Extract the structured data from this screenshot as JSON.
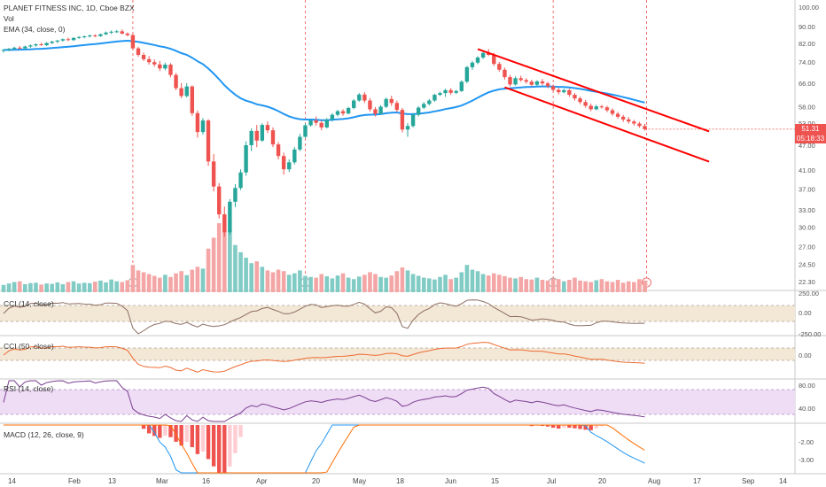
{
  "chart_data": {
    "type": "candlestick",
    "symbol_line": "PLANET FITNESS INC, 1D, Cboe BZX",
    "volume_label": "Vol",
    "ema_label": "EMA (34, close, 0)",
    "x_ticks": [
      "14",
      "Feb",
      "13",
      "Mar",
      "16",
      "Apr",
      "20",
      "May",
      "18",
      "Jun",
      "15",
      "Jul",
      "20",
      "Aug",
      "17",
      "Sep",
      "14"
    ],
    "price_axis_ticks": [
      "100.00",
      "90.00",
      "82.00",
      "74.00",
      "66.00",
      "58.00",
      "53.00",
      "47.00",
      "41.00",
      "37.00",
      "33.00",
      "30.00",
      "27.00",
      "24.50",
      "22.30"
    ],
    "last_price": "51.31",
    "countdown": "05:18:33",
    "price_tag_color": "#ef5350",
    "earnings_marker": "E",
    "candles": [
      [
        78.8,
        79.5,
        78.0,
        79.1
      ],
      [
        79.1,
        80.0,
        78.6,
        79.6
      ],
      [
        79.6,
        80.5,
        79.0,
        80.1
      ],
      [
        80.1,
        80.8,
        79.5,
        79.8
      ],
      [
        79.8,
        81.0,
        79.3,
        80.6
      ],
      [
        80.6,
        81.5,
        80.0,
        81.1
      ],
      [
        81.1,
        82.0,
        80.5,
        81.6
      ],
      [
        81.6,
        82.3,
        81.0,
        81.2
      ],
      [
        81.2,
        82.5,
        80.8,
        82.2
      ],
      [
        82.2,
        83.2,
        81.7,
        82.8
      ],
      [
        82.8,
        83.5,
        82.1,
        83.3
      ],
      [
        83.3,
        84.2,
        82.8,
        83.9
      ],
      [
        83.9,
        84.6,
        83.0,
        83.5
      ],
      [
        83.5,
        84.8,
        83.1,
        84.5
      ],
      [
        84.5,
        85.3,
        84.0,
        84.9
      ],
      [
        84.9,
        85.6,
        84.3,
        85.2
      ],
      [
        85.2,
        86.1,
        84.6,
        85.6
      ],
      [
        85.6,
        86.2,
        84.9,
        85.3
      ],
      [
        85.3,
        86.5,
        85.0,
        86.2
      ],
      [
        86.2,
        87.5,
        85.8,
        87.0
      ],
      [
        87.0,
        88.0,
        86.3,
        87.4
      ],
      [
        87.4,
        88.2,
        86.8,
        87.6
      ],
      [
        87.6,
        88.5,
        86.1,
        86.5
      ],
      [
        86.5,
        87.1,
        85.2,
        85.8
      ],
      [
        85.8,
        86.3,
        79.0,
        79.8
      ],
      [
        79.8,
        80.5,
        76.2,
        77.0
      ],
      [
        77.0,
        78.0,
        74.5,
        75.2
      ],
      [
        75.2,
        76.5,
        73.0,
        74.0
      ],
      [
        74.0,
        75.1,
        72.2,
        73.1
      ],
      [
        73.1,
        74.5,
        70.5,
        71.5
      ],
      [
        71.5,
        73.8,
        70.8,
        73.0
      ],
      [
        73.0,
        73.6,
        68.1,
        69.0
      ],
      [
        69.0,
        69.8,
        63.5,
        64.2
      ],
      [
        64.2,
        66.0,
        60.8,
        61.5
      ],
      [
        61.5,
        66.0,
        61.0,
        64.8
      ],
      [
        64.8,
        65.2,
        55.2,
        56.0
      ],
      [
        56.0,
        56.8,
        49.0,
        50.5
      ],
      [
        50.5,
        54.5,
        49.8,
        53.8
      ],
      [
        53.8,
        54.2,
        42.0,
        43.0
      ],
      [
        43.0,
        44.8,
        36.5,
        37.5
      ],
      [
        37.5,
        38.2,
        31.5,
        32.2
      ],
      [
        32.2,
        33.6,
        28.5,
        29.2
      ],
      [
        29.2,
        35.0,
        28.8,
        34.5
      ],
      [
        34.5,
        38.0,
        33.5,
        37.2
      ],
      [
        37.2,
        41.2,
        36.8,
        40.5
      ],
      [
        40.5,
        48.0,
        39.8,
        47.0
      ],
      [
        47.0,
        51.5,
        45.5,
        50.8
      ],
      [
        50.8,
        52.5,
        46.5,
        48.2
      ],
      [
        48.2,
        53.0,
        47.9,
        52.5
      ],
      [
        52.5,
        53.5,
        50.2,
        51.0
      ],
      [
        51.0,
        51.8,
        46.5,
        47.2
      ],
      [
        47.2,
        47.8,
        43.5,
        44.3
      ],
      [
        44.3,
        45.1,
        40.0,
        41.2
      ],
      [
        41.2,
        43.5,
        40.6,
        42.8
      ],
      [
        42.8,
        46.5,
        42.3,
        45.9
      ],
      [
        45.9,
        50.0,
        45.5,
        49.2
      ],
      [
        49.2,
        53.0,
        48.9,
        52.4
      ],
      [
        52.4,
        54.2,
        52.0,
        53.8
      ],
      [
        53.8,
        55.0,
        52.3,
        53.1
      ],
      [
        53.1,
        53.8,
        51.0,
        51.8
      ],
      [
        51.8,
        54.5,
        51.5,
        54.1
      ],
      [
        54.1,
        56.0,
        53.5,
        55.5
      ],
      [
        55.5,
        57.0,
        55.0,
        56.6
      ],
      [
        56.6,
        57.2,
        55.2,
        55.9
      ],
      [
        55.9,
        58.0,
        55.6,
        57.6
      ],
      [
        57.6,
        60.5,
        57.2,
        60.0
      ],
      [
        60.0,
        62.5,
        59.6,
        62.0
      ],
      [
        62.0,
        62.8,
        59.2,
        60.0
      ],
      [
        60.0,
        60.8,
        56.5,
        57.2
      ],
      [
        57.2,
        57.9,
        55.0,
        55.8
      ],
      [
        55.8,
        58.5,
        55.5,
        58.0
      ],
      [
        58.0,
        61.0,
        57.6,
        60.5
      ],
      [
        60.5,
        61.6,
        58.3,
        59.2
      ],
      [
        59.2,
        60.0,
        56.3,
        57.0
      ],
      [
        57.0,
        57.6,
        50.4,
        51.2
      ],
      [
        51.2,
        53.0,
        49.2,
        52.2
      ],
      [
        52.2,
        56.0,
        51.8,
        55.5
      ],
      [
        55.5,
        58.2,
        55.0,
        57.7
      ],
      [
        57.7,
        59.5,
        57.3,
        58.9
      ],
      [
        58.9,
        60.5,
        58.4,
        60.0
      ],
      [
        60.0,
        62.3,
        59.6,
        61.9
      ],
      [
        61.9,
        63.0,
        61.5,
        62.5
      ],
      [
        62.5,
        64.0,
        61.2,
        63.5
      ],
      [
        63.5,
        64.2,
        61.9,
        62.6
      ],
      [
        62.6,
        63.6,
        62.1,
        63.2
      ],
      [
        63.2,
        67.0,
        62.9,
        66.5
      ],
      [
        66.5,
        72.5,
        66.0,
        72.0
      ],
      [
        72.0,
        74.5,
        71.0,
        73.8
      ],
      [
        73.8,
        76.5,
        73.2,
        75.9
      ],
      [
        75.9,
        78.5,
        75.3,
        77.8
      ],
      [
        77.8,
        79.5,
        76.5,
        77.0
      ],
      [
        77.0,
        77.9,
        72.5,
        73.3
      ],
      [
        73.3,
        74.1,
        70.3,
        71.0
      ],
      [
        71.0,
        71.8,
        67.3,
        68.2
      ],
      [
        68.2,
        69.0,
        64.8,
        65.5
      ],
      [
        65.5,
        68.5,
        65.1,
        67.8
      ],
      [
        67.8,
        68.7,
        66.5,
        67.1
      ],
      [
        67.1,
        67.8,
        65.8,
        66.5
      ],
      [
        66.5,
        67.2,
        64.8,
        65.4
      ],
      [
        65.4,
        67.0,
        65.0,
        66.6
      ],
      [
        66.6,
        67.5,
        65.2,
        65.9
      ],
      [
        65.9,
        66.5,
        64.2,
        64.9
      ],
      [
        64.9,
        65.5,
        63.0,
        63.6
      ],
      [
        63.6,
        64.3,
        62.0,
        62.8
      ],
      [
        62.8,
        64.0,
        62.4,
        63.5
      ],
      [
        63.5,
        64.0,
        61.2,
        61.9
      ],
      [
        61.9,
        62.5,
        60.0,
        60.7
      ],
      [
        60.7,
        61.3,
        58.8,
        59.5
      ],
      [
        59.5,
        60.2,
        57.7,
        58.3
      ],
      [
        58.3,
        59.0,
        56.6,
        57.2
      ],
      [
        57.2,
        58.6,
        56.9,
        58.1
      ],
      [
        58.1,
        58.6,
        57.4,
        57.8
      ],
      [
        57.8,
        58.3,
        56.3,
        56.9
      ],
      [
        56.9,
        57.5,
        55.2,
        55.8
      ],
      [
        55.8,
        56.4,
        54.3,
        54.9
      ],
      [
        54.9,
        55.5,
        53.4,
        54.1
      ],
      [
        54.1,
        54.8,
        52.9,
        53.5
      ],
      [
        53.5,
        54.0,
        52.3,
        52.9
      ],
      [
        52.9,
        53.4,
        51.7,
        52.2
      ],
      [
        52.2,
        52.8,
        50.9,
        51.31
      ]
    ],
    "volume": [
      0.2,
      0.24,
      0.28,
      0.3,
      0.22,
      0.25,
      0.26,
      0.21,
      0.24,
      0.23,
      0.27,
      0.22,
      0.28,
      0.3,
      0.24,
      0.26,
      0.25,
      0.29,
      0.32,
      0.27,
      0.35,
      0.3,
      0.28,
      0.33,
      0.75,
      0.6,
      0.55,
      0.5,
      0.45,
      0.4,
      0.48,
      0.42,
      0.52,
      0.58,
      0.47,
      0.62,
      0.7,
      0.65,
      1.2,
      1.5,
      1.9,
      2.0,
      1.7,
      1.3,
      1.1,
      0.95,
      0.8,
      0.85,
      0.7,
      0.6,
      0.55,
      0.62,
      0.58,
      0.48,
      0.52,
      0.6,
      0.45,
      0.42,
      0.4,
      0.5,
      0.44,
      0.38,
      0.46,
      0.52,
      0.4,
      0.36,
      0.43,
      0.48,
      0.55,
      0.5,
      0.42,
      0.4,
      0.46,
      0.58,
      0.68,
      0.6,
      0.5,
      0.45,
      0.4,
      0.38,
      0.35,
      0.42,
      0.48,
      0.36,
      0.4,
      0.55,
      0.75,
      0.62,
      0.58,
      0.5,
      0.46,
      0.52,
      0.48,
      0.44,
      0.4,
      0.38,
      0.42,
      0.36,
      0.35,
      0.4,
      0.34,
      0.32,
      0.38,
      0.36,
      0.3,
      0.34,
      0.4,
      0.32,
      0.3,
      0.28,
      0.33,
      0.36,
      0.3,
      0.28,
      0.34,
      0.26,
      0.3,
      0.28,
      0.36,
      0.32
    ],
    "vertical_markers": [
      24,
      56,
      102
    ],
    "channel_upper": [
      [
        88,
        79.5
      ],
      [
        126,
        53.2
      ]
    ],
    "channel_lower": [
      [
        93,
        64.5
      ],
      [
        126,
        44.0
      ]
    ],
    "indicators": [
      {
        "label": "CCI (14, close)",
        "ticks": [
          "250.00",
          "0.00",
          "-250.00"
        ],
        "band": "#f3e7d6",
        "line_color": "#8d6e63"
      },
      {
        "label": "CCI (50, close)",
        "ticks": [
          "0.00"
        ],
        "band": "#f3e7d6",
        "line_color": "#ef6c32"
      },
      {
        "label": "RSI (14, close)",
        "ticks": [
          "80.00",
          "40.00"
        ],
        "band": "#efdcf5",
        "line_color": "#7b3f92"
      },
      {
        "label": "MACD (12, 26, close, 9)",
        "ticks": [
          "-2.00",
          "-3.00"
        ],
        "line_color": "#2196f3",
        "signal_color": "#ff6d00"
      }
    ]
  }
}
